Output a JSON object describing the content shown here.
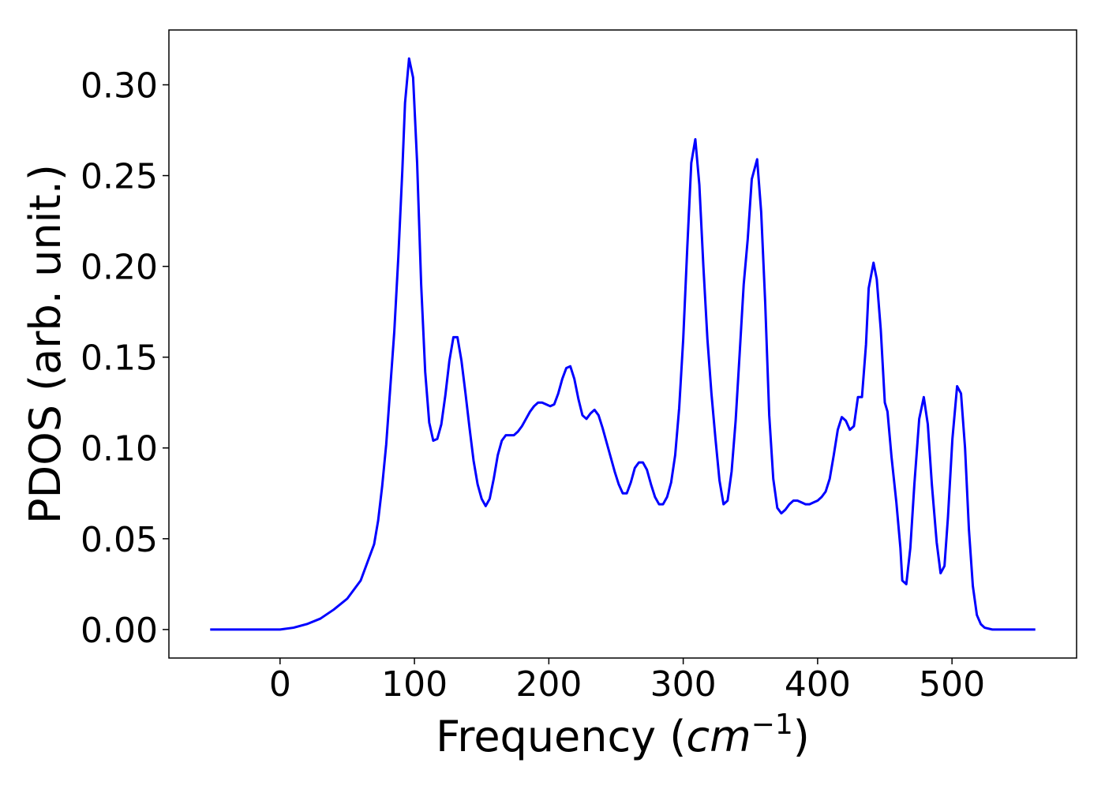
{
  "chart_data": {
    "type": "line",
    "y_label": "PDOS (arb. unit.)",
    "x_label_parts": [
      "Frequency (",
      "cm",
      "−1",
      ")"
    ],
    "xlim": [
      -82.7,
      592.7
    ],
    "ylim": [
      -0.0157,
      0.3302
    ],
    "xticks": [
      0,
      100,
      200,
      300,
      400,
      500
    ],
    "yticks": [
      {
        "value": 0,
        "label": "0.00"
      },
      {
        "value": 0.05,
        "label": "0.05"
      },
      {
        "value": 0.1,
        "label": "0.10"
      },
      {
        "value": 0.15,
        "label": "0.15"
      },
      {
        "value": 0.2,
        "label": "0.20"
      },
      {
        "value": 0.25,
        "label": "0.25"
      },
      {
        "value": 0.3,
        "label": "0.30"
      }
    ],
    "grid": false,
    "series": [
      {
        "color": "#0000ff",
        "x": [
          -52,
          0,
          10,
          20,
          30,
          40,
          50,
          60,
          65,
          70,
          73,
          76,
          79,
          82,
          85,
          88,
          91,
          93,
          96,
          99,
          102,
          105,
          108,
          111,
          114,
          117,
          120,
          123,
          126,
          129,
          132,
          135,
          138,
          141,
          144,
          147,
          150,
          153,
          156,
          159,
          162,
          165,
          168,
          171,
          174,
          177,
          180,
          183,
          186,
          189,
          192,
          195,
          198,
          201,
          204,
          207,
          210,
          213,
          216,
          219,
          222,
          225,
          228,
          231,
          234,
          237,
          240,
          243,
          246,
          249,
          252,
          255,
          258,
          261,
          264,
          267,
          270,
          273,
          276,
          279,
          282,
          285,
          288,
          291,
          294,
          297,
          300,
          303,
          306,
          309,
          312,
          315,
          318,
          321,
          324,
          327,
          330,
          333,
          336,
          339,
          342,
          345,
          348,
          351,
          355,
          358,
          361,
          364,
          367,
          370,
          373,
          376,
          379,
          382,
          385,
          388,
          391,
          394,
          397,
          400,
          403,
          406,
          409,
          412,
          415,
          418,
          421,
          424,
          427,
          430,
          433,
          436,
          438,
          441.6,
          444,
          447,
          450,
          452,
          455,
          458.6,
          461.6,
          463,
          466,
          469,
          472,
          475.6,
          479,
          482,
          485,
          488.6,
          491.5,
          494.4,
          497,
          500.3,
          503.8,
          506.7,
          509.7,
          512.6,
          515.5,
          518.5,
          521.4,
          524.3,
          530,
          562
        ],
        "values": [
          0,
          0,
          0.001,
          0.003,
          0.006,
          0.011,
          0.017,
          0.027,
          0.037,
          0.047,
          0.06,
          0.079,
          0.102,
          0.133,
          0.164,
          0.205,
          0.253,
          0.29,
          0.3145,
          0.304,
          0.257,
          0.19,
          0.142,
          0.114,
          0.104,
          0.105,
          0.113,
          0.129,
          0.148,
          0.161,
          0.161,
          0.148,
          0.13,
          0.111,
          0.093,
          0.08,
          0.072,
          0.068,
          0.072,
          0.083,
          0.096,
          0.104,
          0.107,
          0.107,
          0.107,
          0.109,
          0.112,
          0.116,
          0.12,
          0.123,
          0.125,
          0.125,
          0.124,
          0.123,
          0.124,
          0.13,
          0.138,
          0.144,
          0.145,
          0.138,
          0.127,
          0.118,
          0.116,
          0.119,
          0.121,
          0.118,
          0.111,
          0.103,
          0.095,
          0.087,
          0.08,
          0.075,
          0.075,
          0.081,
          0.089,
          0.092,
          0.092,
          0.088,
          0.08,
          0.073,
          0.069,
          0.069,
          0.073,
          0.081,
          0.096,
          0.122,
          0.16,
          0.21,
          0.257,
          0.27,
          0.245,
          0.2,
          0.16,
          0.13,
          0.105,
          0.082,
          0.069,
          0.071,
          0.087,
          0.115,
          0.152,
          0.19,
          0.215,
          0.248,
          0.259,
          0.23,
          0.18,
          0.118,
          0.083,
          0.067,
          0.064,
          0.066,
          0.069,
          0.071,
          0.071,
          0.07,
          0.069,
          0.069,
          0.07,
          0.071,
          0.073,
          0.076,
          0.083,
          0.096,
          0.11,
          0.117,
          0.115,
          0.11,
          0.112,
          0.128,
          0.128,
          0.157,
          0.188,
          0.202,
          0.193,
          0.165,
          0.125,
          0.12,
          0.095,
          0.07,
          0.045,
          0.027,
          0.025,
          0.045,
          0.08,
          0.116,
          0.128,
          0.113,
          0.08,
          0.048,
          0.031,
          0.035,
          0.062,
          0.105,
          0.134,
          0.13,
          0.1,
          0.055,
          0.024,
          0.008,
          0.003,
          0.001,
          0,
          0
        ]
      }
    ]
  }
}
